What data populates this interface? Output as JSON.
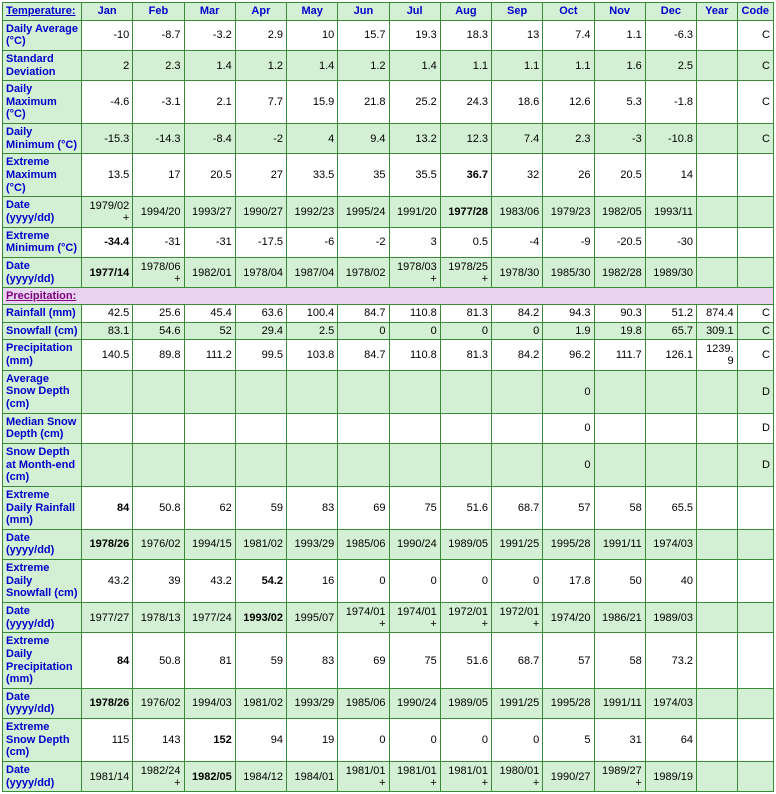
{
  "headers": [
    "Temperature:",
    "Jan",
    "Feb",
    "Mar",
    "Apr",
    "May",
    "Jun",
    "Jul",
    "Aug",
    "Sep",
    "Oct",
    "Nov",
    "Dec",
    "Year",
    "Code"
  ],
  "tempRows": [
    {
      "label": "Daily Average (°C)",
      "vals": [
        "-10",
        "-8.7",
        "-3.2",
        "2.9",
        "10",
        "15.7",
        "19.3",
        "18.3",
        "13",
        "7.4",
        "1.1",
        "-6.3",
        "",
        "C"
      ],
      "bold": []
    },
    {
      "label": "Standard Deviation",
      "vals": [
        "2",
        "2.3",
        "1.4",
        "1.2",
        "1.4",
        "1.2",
        "1.4",
        "1.1",
        "1.1",
        "1.1",
        "1.6",
        "2.5",
        "",
        "C"
      ],
      "bold": []
    },
    {
      "label": "Daily Maximum (°C)",
      "vals": [
        "-4.6",
        "-3.1",
        "2.1",
        "7.7",
        "15.9",
        "21.8",
        "25.2",
        "24.3",
        "18.6",
        "12.6",
        "5.3",
        "-1.8",
        "",
        "C"
      ],
      "bold": []
    },
    {
      "label": "Daily Minimum (°C)",
      "vals": [
        "-15.3",
        "-14.3",
        "-8.4",
        "-2",
        "4",
        "9.4",
        "13.2",
        "12.3",
        "7.4",
        "2.3",
        "-3",
        "-10.8",
        "",
        "C"
      ],
      "bold": []
    },
    {
      "label": "Extreme Maximum (°C)",
      "vals": [
        "13.5",
        "17",
        "20.5",
        "27",
        "33.5",
        "35",
        "35.5",
        "36.7",
        "32",
        "26",
        "20.5",
        "14",
        "",
        ""
      ],
      "bold": [
        7
      ]
    },
    {
      "label": "Date (yyyy/dd)",
      "vals": [
        "1979/02+",
        "1994/20",
        "1993/27",
        "1990/27",
        "1992/23",
        "1995/24",
        "1991/20",
        "1977/28",
        "1983/06",
        "1979/23",
        "1982/05",
        "1993/11",
        "",
        ""
      ],
      "bold": [
        7
      ]
    },
    {
      "label": "Extreme Minimum (°C)",
      "vals": [
        "-34.4",
        "-31",
        "-31",
        "-17.5",
        "-6",
        "-2",
        "3",
        "0.5",
        "-4",
        "-9",
        "-20.5",
        "-30",
        "",
        ""
      ],
      "bold": [
        0
      ]
    },
    {
      "label": "Date (yyyy/dd)",
      "vals": [
        "1977/14",
        "1978/06+",
        "1982/01",
        "1978/04",
        "1987/04",
        "1978/02",
        "1978/03+",
        "1978/25+",
        "1978/30",
        "1985/30",
        "1982/28",
        "1989/30",
        "",
        ""
      ],
      "bold": [
        0
      ]
    }
  ],
  "precipTitle": "Precipitation:",
  "precipRows": [
    {
      "label": "Rainfall (mm)",
      "vals": [
        "42.5",
        "25.6",
        "45.4",
        "63.6",
        "100.4",
        "84.7",
        "110.8",
        "81.3",
        "84.2",
        "94.3",
        "90.3",
        "51.2",
        "874.4",
        "C"
      ],
      "bold": []
    },
    {
      "label": "Snowfall (cm)",
      "vals": [
        "83.1",
        "54.6",
        "52",
        "29.4",
        "2.5",
        "0",
        "0",
        "0",
        "0",
        "1.9",
        "19.8",
        "65.7",
        "309.1",
        "C"
      ],
      "bold": []
    },
    {
      "label": "Precipitation (mm)",
      "vals": [
        "140.5",
        "89.8",
        "111.2",
        "99.5",
        "103.8",
        "84.7",
        "110.8",
        "81.3",
        "84.2",
        "96.2",
        "111.7",
        "126.1",
        "1239.9",
        "C"
      ],
      "bold": []
    },
    {
      "label": "Average Snow Depth (cm)",
      "vals": [
        "",
        "",
        "",
        "",
        "",
        "",
        "",
        "",
        "",
        "0",
        "",
        "",
        "",
        "D"
      ],
      "bold": []
    },
    {
      "label": "Median Snow Depth (cm)",
      "vals": [
        "",
        "",
        "",
        "",
        "",
        "",
        "",
        "",
        "",
        "0",
        "",
        "",
        "",
        "D"
      ],
      "bold": []
    },
    {
      "label": "Snow Depth at Month-end (cm)",
      "vals": [
        "",
        "",
        "",
        "",
        "",
        "",
        "",
        "",
        "",
        "0",
        "",
        "",
        "",
        "D"
      ],
      "bold": []
    },
    {
      "label": "Extreme Daily Rainfall (mm)",
      "vals": [
        "84",
        "50.8",
        "62",
        "59",
        "83",
        "69",
        "75",
        "51.6",
        "68.7",
        "57",
        "58",
        "65.5",
        "",
        ""
      ],
      "bold": [
        0
      ]
    },
    {
      "label": "Date (yyyy/dd)",
      "vals": [
        "1978/26",
        "1976/02",
        "1994/15",
        "1981/02",
        "1993/29",
        "1985/06",
        "1990/24",
        "1989/05",
        "1991/25",
        "1995/28",
        "1991/11",
        "1974/03",
        "",
        ""
      ],
      "bold": [
        0
      ]
    },
    {
      "label": "Extreme Daily Snowfall (cm)",
      "vals": [
        "43.2",
        "39",
        "43.2",
        "54.2",
        "16",
        "0",
        "0",
        "0",
        "0",
        "17.8",
        "50",
        "40",
        "",
        ""
      ],
      "bold": [
        3
      ]
    },
    {
      "label": "Date (yyyy/dd)",
      "vals": [
        "1977/27",
        "1978/13",
        "1977/24",
        "1993/02",
        "1995/07",
        "1974/01+",
        "1974/01+",
        "1972/01+",
        "1972/01+",
        "1974/20",
        "1986/21",
        "1989/03",
        "",
        ""
      ],
      "bold": [
        3
      ]
    },
    {
      "label": "Extreme Daily Precipitation (mm)",
      "vals": [
        "84",
        "50.8",
        "81",
        "59",
        "83",
        "69",
        "75",
        "51.6",
        "68.7",
        "57",
        "58",
        "73.2",
        "",
        ""
      ],
      "bold": [
        0
      ]
    },
    {
      "label": "Date (yyyy/dd)",
      "vals": [
        "1978/26",
        "1976/02",
        "1994/03",
        "1981/02",
        "1993/29",
        "1985/06",
        "1990/24",
        "1989/05",
        "1991/25",
        "1995/28",
        "1991/11",
        "1974/03",
        "",
        ""
      ],
      "bold": [
        0
      ]
    },
    {
      "label": "Extreme Snow Depth (cm)",
      "vals": [
        "115",
        "143",
        "152",
        "94",
        "19",
        "0",
        "0",
        "0",
        "0",
        "5",
        "31",
        "64",
        "",
        ""
      ],
      "bold": [
        2
      ]
    },
    {
      "label": "Date (yyyy/dd)",
      "vals": [
        "1981/14",
        "1982/24+",
        "1982/05",
        "1984/12",
        "1984/01",
        "1981/01+",
        "1981/01+",
        "1981/01+",
        "1980/01+",
        "1990/27",
        "1989/27+",
        "1989/19",
        "",
        ""
      ],
      "bold": [
        2
      ]
    }
  ]
}
